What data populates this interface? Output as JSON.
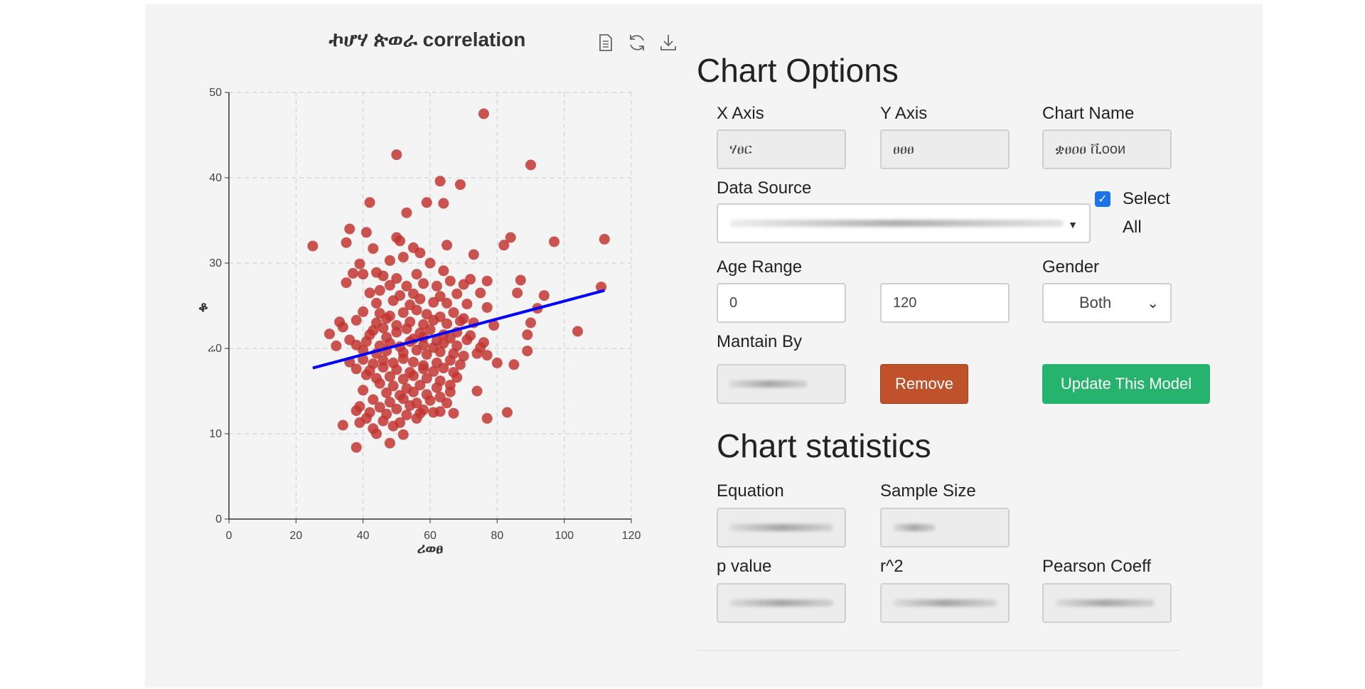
{
  "chart": {
    "title": "ኯሆሃ ጵወራ correlation",
    "x_axis_name": "ሪወፀ",
    "y_axis_name": "ቆ",
    "toolbox": {
      "data_view_icon": "document-icon",
      "restore_icon": "refresh-icon",
      "save_icon": "download-icon"
    }
  },
  "chart_data": {
    "type": "scatter",
    "title": "ኯሆሃ ጵወራ correlation",
    "xlabel": "ሪወፀ",
    "ylabel": "ቆ",
    "xlim": [
      0,
      120
    ],
    "ylim": [
      0,
      50
    ],
    "x_ticks": [
      0,
      20,
      40,
      60,
      80,
      100,
      120
    ],
    "y_ticks": [
      0,
      10,
      20,
      30,
      40,
      50
    ],
    "y_tick_labels": [
      "0",
      "10",
      "ሬ0",
      "30",
      "40",
      "50"
    ],
    "grid": true,
    "point_color": "#c23531",
    "line_color": "#0000ff",
    "regression_line": {
      "x": [
        25,
        112
      ],
      "y": [
        17.7,
        26.8
      ]
    },
    "points": [
      [
        76,
        47.5
      ],
      [
        50,
        42.7
      ],
      [
        90,
        41.5
      ],
      [
        63,
        39.6
      ],
      [
        69,
        39.2
      ],
      [
        42,
        37.1
      ],
      [
        59,
        37.1
      ],
      [
        64,
        37
      ],
      [
        53,
        35.9
      ],
      [
        36,
        34
      ],
      [
        41,
        33.6
      ],
      [
        50,
        33
      ],
      [
        84,
        33
      ],
      [
        35,
        32.4
      ],
      [
        51,
        32.6
      ],
      [
        97,
        32.5
      ],
      [
        112,
        32.8
      ],
      [
        25,
        32
      ],
      [
        55,
        31.8
      ],
      [
        43,
        31.7
      ],
      [
        65,
        32.1
      ],
      [
        82,
        32.1
      ],
      [
        57,
        31.2
      ],
      [
        73,
        31
      ],
      [
        48,
        30.3
      ],
      [
        52,
        30.7
      ],
      [
        39,
        29.9
      ],
      [
        60,
        30
      ],
      [
        37,
        28.8
      ],
      [
        44,
        28.9
      ],
      [
        46,
        28.5
      ],
      [
        50,
        28.2
      ],
      [
        56,
        28.7
      ],
      [
        64,
        29.1
      ],
      [
        72,
        28.1
      ],
      [
        77,
        27.9
      ],
      [
        87,
        28
      ],
      [
        35,
        27.7
      ],
      [
        40,
        28.7
      ],
      [
        48,
        27.4
      ],
      [
        53,
        27.3
      ],
      [
        58,
        27.6
      ],
      [
        62,
        27.3
      ],
      [
        66,
        27.9
      ],
      [
        70,
        27.5
      ],
      [
        111,
        27.2
      ],
      [
        42,
        26.5
      ],
      [
        45,
        26.8
      ],
      [
        51,
        26.2
      ],
      [
        55,
        26.4
      ],
      [
        63,
        26.1
      ],
      [
        68,
        26.4
      ],
      [
        75,
        26.5
      ],
      [
        86,
        26.5
      ],
      [
        94,
        26.2
      ],
      [
        44,
        25.3
      ],
      [
        49,
        25.6
      ],
      [
        54,
        25.1
      ],
      [
        57,
        25.8
      ],
      [
        61,
        25.4
      ],
      [
        65,
        25.3
      ],
      [
        71,
        25.2
      ],
      [
        77,
        24.8
      ],
      [
        92,
        24.7
      ],
      [
        40,
        24.3
      ],
      [
        45,
        24.1
      ],
      [
        48,
        23.8
      ],
      [
        52,
        24.2
      ],
      [
        56,
        24.5
      ],
      [
        59,
        24
      ],
      [
        63,
        23.7
      ],
      [
        67,
        24.2
      ],
      [
        70,
        23.5
      ],
      [
        33,
        23.1
      ],
      [
        38,
        23.3
      ],
      [
        44,
        23
      ],
      [
        47,
        23.5
      ],
      [
        50,
        22.7
      ],
      [
        54,
        23.1
      ],
      [
        58,
        22.8
      ],
      [
        61,
        23.3
      ],
      [
        65,
        22.9
      ],
      [
        69,
        23.2
      ],
      [
        73,
        23
      ],
      [
        79,
        22.7
      ],
      [
        90,
        23
      ],
      [
        34,
        22.5
      ],
      [
        43,
        22.1
      ],
      [
        46,
        22.4
      ],
      [
        50,
        21.9
      ],
      [
        53,
        22.3
      ],
      [
        57,
        21.8
      ],
      [
        60,
        22.2
      ],
      [
        64,
        21.6
      ],
      [
        68,
        21.9
      ],
      [
        72,
        21.5
      ],
      [
        42,
        21.6
      ],
      [
        47,
        21.3
      ],
      [
        55,
        21.1
      ],
      [
        58,
        21.3
      ],
      [
        62,
        20.9
      ],
      [
        66,
        21.2
      ],
      [
        71,
        21
      ],
      [
        76,
        20.7
      ],
      [
        89,
        21.6
      ],
      [
        104,
        22
      ],
      [
        30,
        21.7
      ],
      [
        36,
        21
      ],
      [
        38,
        20.4
      ],
      [
        41,
        20.8
      ],
      [
        45,
        20.3
      ],
      [
        48,
        20.6
      ],
      [
        51,
        20.2
      ],
      [
        54,
        20.8
      ],
      [
        58,
        20.4
      ],
      [
        61,
        20.1
      ],
      [
        64,
        20.6
      ],
      [
        68,
        20.3
      ],
      [
        75,
        20.1
      ],
      [
        32,
        20.3
      ],
      [
        40,
        19.8
      ],
      [
        44,
        19.4
      ],
      [
        47,
        19.7
      ],
      [
        52,
        19.5
      ],
      [
        56,
        19.8
      ],
      [
        59,
        19.3
      ],
      [
        63,
        19.6
      ],
      [
        67,
        19.4
      ],
      [
        70,
        19.1
      ],
      [
        74,
        19.4
      ],
      [
        77,
        19.2
      ],
      [
        89,
        19.7
      ],
      [
        36,
        18.4
      ],
      [
        40,
        18.7
      ],
      [
        43,
        18.2
      ],
      [
        46,
        18.6
      ],
      [
        49,
        18.3
      ],
      [
        52,
        18.8
      ],
      [
        55,
        18.4
      ],
      [
        58,
        18
      ],
      [
        62,
        18.3
      ],
      [
        66,
        18.6
      ],
      [
        69,
        18.1
      ],
      [
        80,
        18.3
      ],
      [
        85,
        18.1
      ],
      [
        38,
        17.6
      ],
      [
        42,
        17.4
      ],
      [
        46,
        17.8
      ],
      [
        50,
        17.5
      ],
      [
        54,
        17.2
      ],
      [
        58,
        17.6
      ],
      [
        61,
        17.3
      ],
      [
        64,
        17.7
      ],
      [
        67,
        17.2
      ],
      [
        41,
        16.9
      ],
      [
        44,
        16.5
      ],
      [
        48,
        16.7
      ],
      [
        52,
        16.4
      ],
      [
        55,
        16.8
      ],
      [
        59,
        16.5
      ],
      [
        63,
        16.2
      ],
      [
        68,
        16.6
      ],
      [
        45,
        15.9
      ],
      [
        49,
        15.6
      ],
      [
        53,
        15.3
      ],
      [
        57,
        15.7
      ],
      [
        62,
        15.4
      ],
      [
        66,
        15.7
      ],
      [
        74,
        15
      ],
      [
        40,
        15.1
      ],
      [
        47,
        14.8
      ],
      [
        51,
        14.5
      ],
      [
        55,
        14.9
      ],
      [
        59,
        14.6
      ],
      [
        63,
        14.3
      ],
      [
        66,
        14.9
      ],
      [
        43,
        14
      ],
      [
        48,
        13.7
      ],
      [
        52,
        14.1
      ],
      [
        56,
        13.6
      ],
      [
        60,
        13.9
      ],
      [
        65,
        13.6
      ],
      [
        39,
        13.2
      ],
      [
        45,
        13.1
      ],
      [
        50,
        12.9
      ],
      [
        54,
        13.3
      ],
      [
        58,
        12.8
      ],
      [
        63,
        12.6
      ],
      [
        42,
        12.5
      ],
      [
        47,
        12.3
      ],
      [
        53,
        12.2
      ],
      [
        57,
        12.4
      ],
      [
        61,
        12.5
      ],
      [
        67,
        12.4
      ],
      [
        83,
        12.5
      ],
      [
        38,
        12.7
      ],
      [
        41,
        11.8
      ],
      [
        46,
        11.5
      ],
      [
        51,
        11.3
      ],
      [
        56,
        11.8
      ],
      [
        77,
        11.8
      ],
      [
        34,
        11
      ],
      [
        39,
        11.3
      ],
      [
        43,
        10.6
      ],
      [
        49,
        10.9
      ],
      [
        44,
        10
      ],
      [
        52,
        9.9
      ],
      [
        48,
        8.9
      ],
      [
        38,
        8.4
      ]
    ]
  },
  "options": {
    "heading": "Chart Options",
    "x_axis": {
      "label": "X Axis",
      "value": "ሃፀር"
    },
    "y_axis": {
      "label": "Y Axis",
      "value": "ፀፀፀ"
    },
    "chart_name": {
      "label": "Chart Name",
      "value": "ቋፀዐፀ ቪooи"
    },
    "data_source": {
      "label": "Data Source"
    },
    "select_all": {
      "line1": "Select",
      "line2": "All"
    },
    "age_range": {
      "label": "Age Range",
      "min": "0",
      "max": "120"
    },
    "gender": {
      "label": "Gender",
      "selected": "Both"
    },
    "maintain_by": {
      "label": "Mantain By"
    },
    "remove_label": "Remove",
    "update_label": "Update This Model"
  },
  "statistics": {
    "heading": "Chart statistics",
    "equation_label": "Equation",
    "sample_size_label": "Sample Size",
    "p_value_label": "p value",
    "r2_label": "r^2",
    "pearson_label": "Pearson Coeff"
  },
  "colors": {
    "remove": "#c0522b",
    "update": "#26b36e",
    "checkbox": "#1a73e8"
  }
}
